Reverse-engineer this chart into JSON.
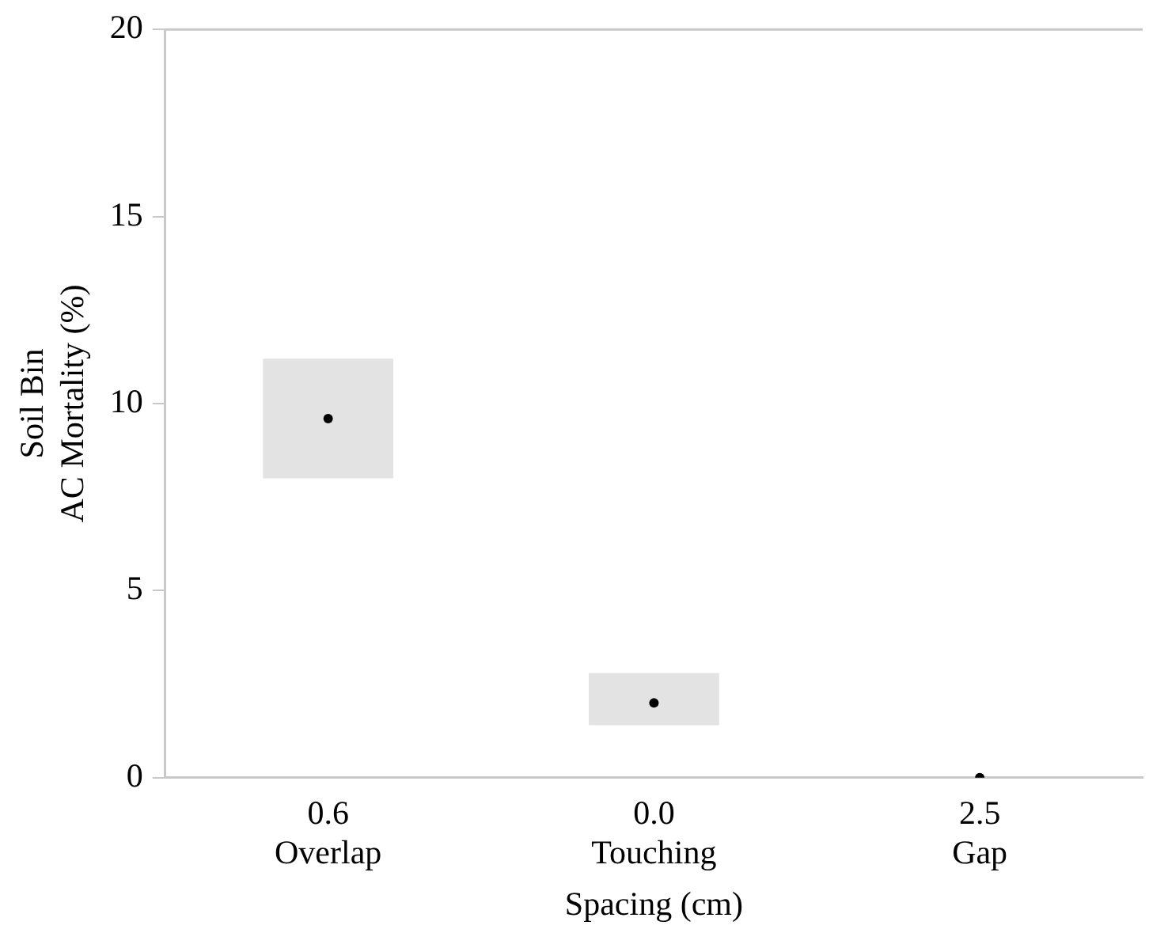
{
  "chart_data": {
    "type": "bar",
    "xlabel": "Spacing (cm)",
    "ylabel": "Soil Bin\nAC Mortality (%)",
    "categories": [
      "0.6\nOverlap",
      "0.0\nTouching",
      "2.5\nGap"
    ],
    "series": [
      {
        "color": "#e3e3e3",
        "base": [
          8.0,
          1.4,
          null
        ],
        "values": [
          3.2,
          1.4,
          null
        ]
      },
      {
        "type": "scatter",
        "color": "#000000",
        "x": [
          "0.6\nOverlap",
          "0.0\nTouching",
          "2.5\nGap"
        ],
        "values": [
          9.6,
          2.0,
          0
        ],
        "marker": "circle"
      }
    ],
    "ylim": [
      0,
      20
    ],
    "yticks": [
      0,
      5,
      10,
      15,
      20
    ],
    "grid": false,
    "legend": false
  }
}
